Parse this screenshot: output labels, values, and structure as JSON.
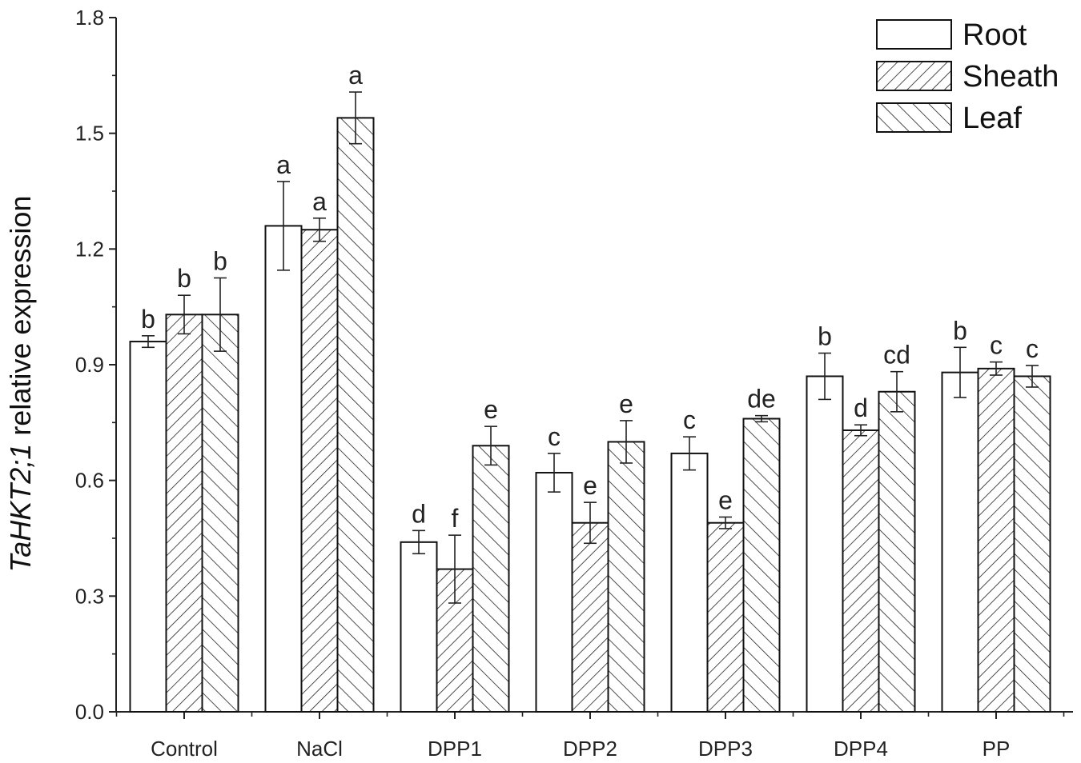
{
  "chart_data": {
    "type": "bar",
    "title": "",
    "xlabel": "",
    "ylabel_italic": "TaHKT2;1",
    "ylabel_rest": " relative expression",
    "ylim": [
      0,
      1.8
    ],
    "yticks": [
      "0.0",
      "0.3",
      "0.6",
      "0.9",
      "1.2",
      "1.5",
      "1.8"
    ],
    "categories": [
      "Control",
      "NaCl",
      "DPP1",
      "DPP2",
      "DPP3",
      "DPP4",
      "PP"
    ],
    "legend_position": "top-right",
    "series": [
      {
        "name": "Root",
        "pattern": "none",
        "values": [
          0.96,
          1.26,
          0.44,
          0.62,
          0.67,
          0.87,
          0.88
        ],
        "errors": [
          0.015,
          0.115,
          0.03,
          0.05,
          0.043,
          0.06,
          0.065
        ],
        "labels": [
          "b",
          "a",
          "d",
          "c",
          "c",
          "b",
          "b"
        ]
      },
      {
        "name": "Sheath",
        "pattern": "forward-diagonal",
        "values": [
          1.03,
          1.25,
          0.37,
          0.49,
          0.49,
          0.73,
          0.89
        ],
        "errors": [
          0.05,
          0.03,
          0.088,
          0.053,
          0.015,
          0.014,
          0.017
        ],
        "labels": [
          "b",
          "a",
          "f",
          "e",
          "e",
          "d",
          "c"
        ]
      },
      {
        "name": "Leaf",
        "pattern": "back-diagonal",
        "values": [
          1.03,
          1.54,
          0.69,
          0.7,
          0.76,
          0.83,
          0.87
        ],
        "errors": [
          0.095,
          0.067,
          0.05,
          0.055,
          0.008,
          0.052,
          0.028
        ],
        "labels": [
          "b",
          "a",
          "e",
          "e",
          "de",
          "cd",
          "c"
        ]
      }
    ]
  }
}
